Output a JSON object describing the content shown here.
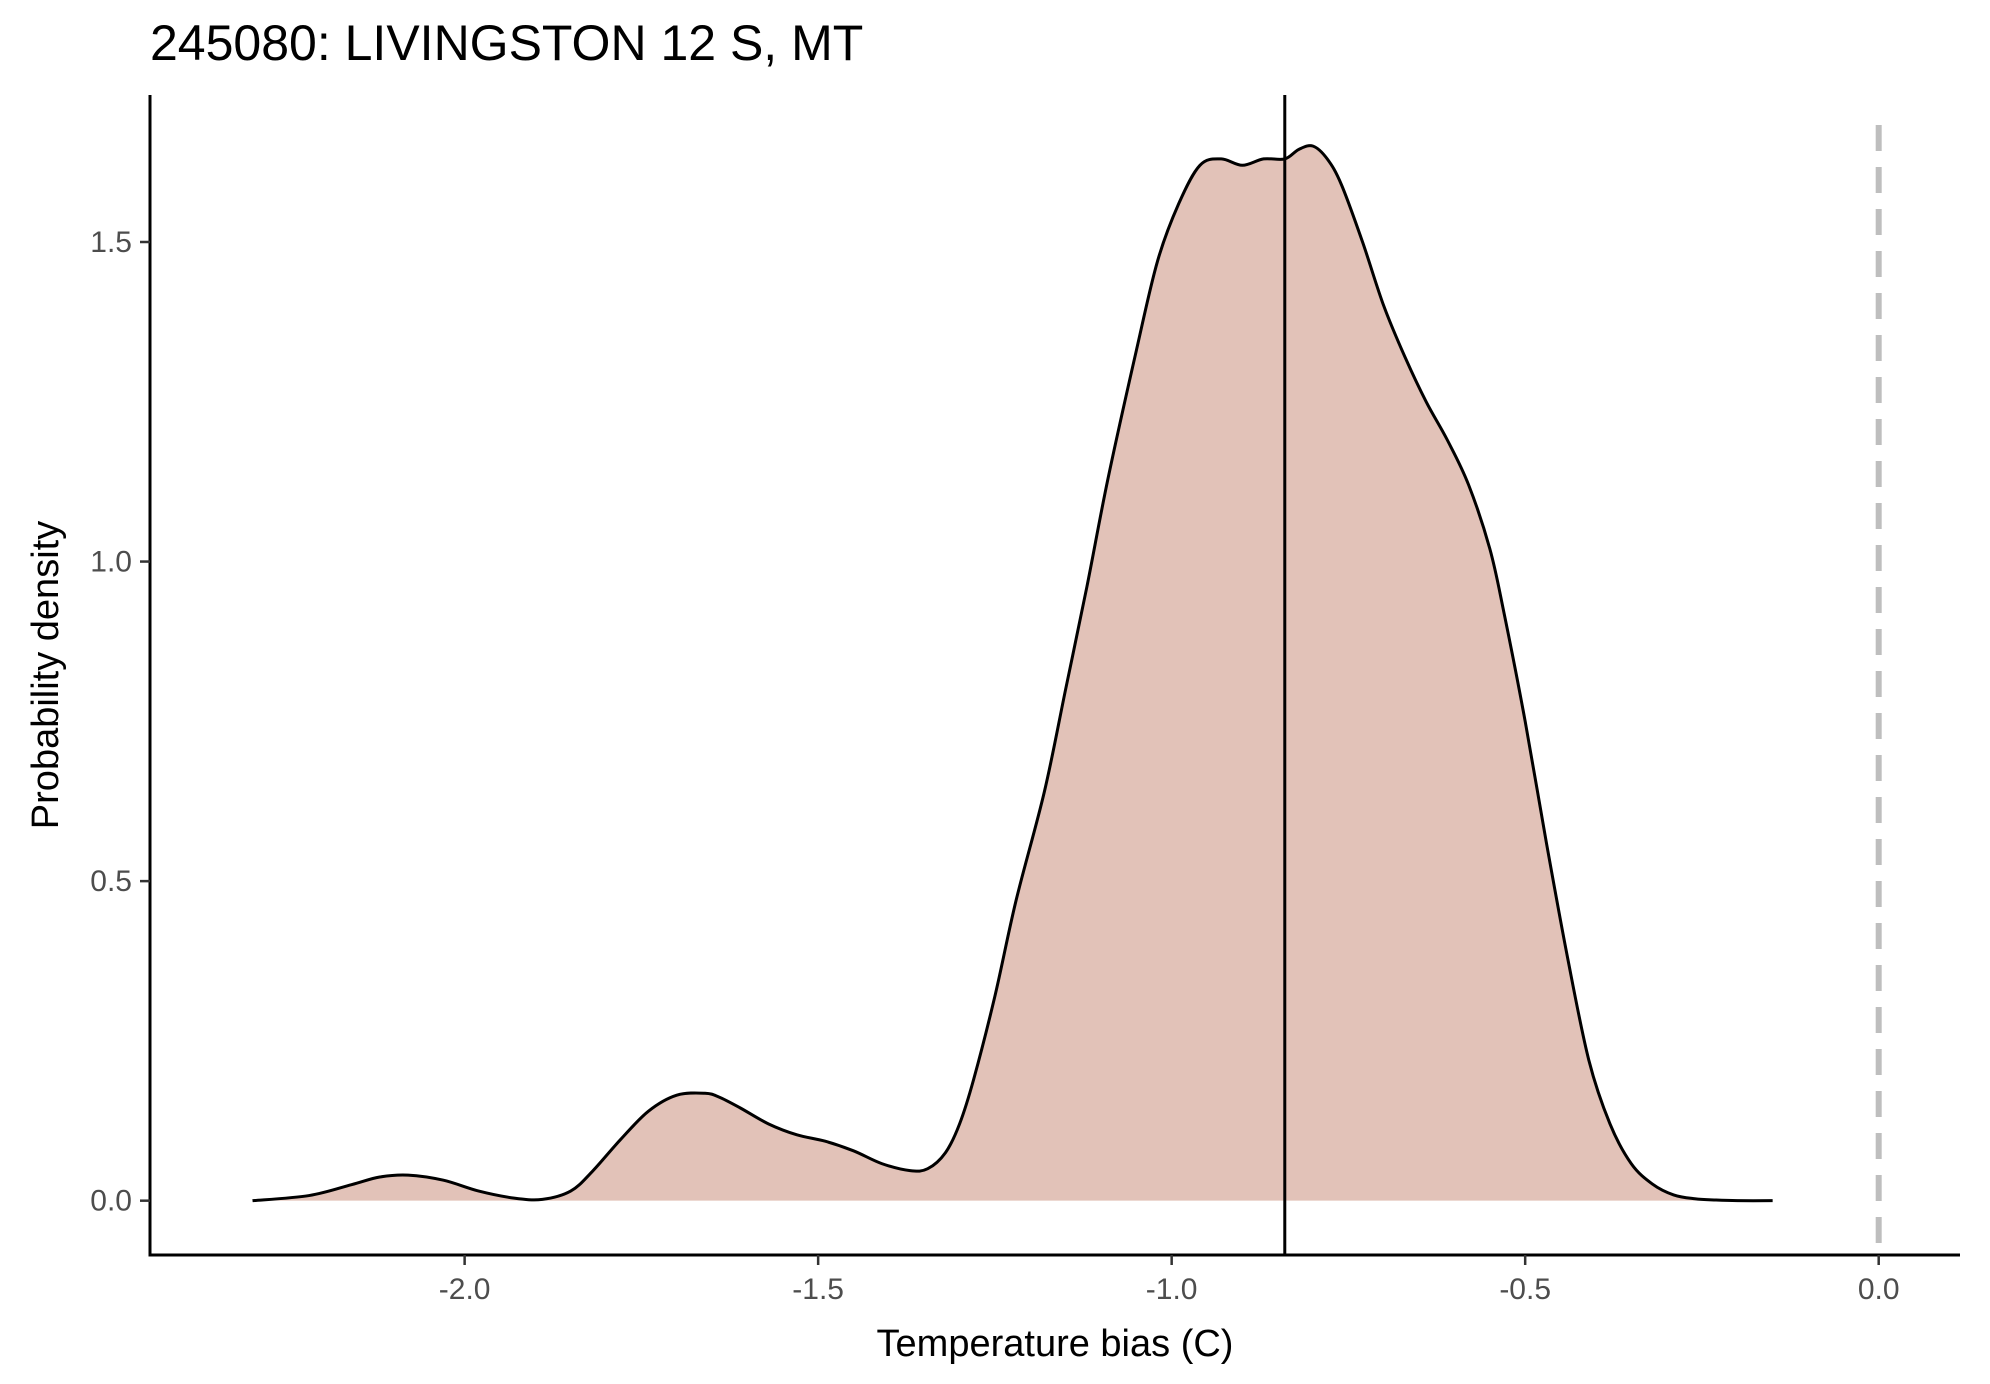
{
  "chart_data": {
    "type": "area",
    "title": "245080: LIVINGSTON 12 S, MT",
    "xlabel": "Temperature bias (C)",
    "ylabel": "Probability density",
    "xlim": [
      -2.445,
      0.115
    ],
    "ylim": [
      -0.085,
      1.73
    ],
    "x_ticks": [
      -2.0,
      -1.5,
      -1.0,
      -0.5,
      0.0
    ],
    "x_tick_labels": [
      "-2.0",
      "-1.5",
      "-1.0",
      "-0.5",
      "0.0"
    ],
    "y_ticks": [
      0.0,
      0.5,
      1.0,
      1.5
    ],
    "y_tick_labels": [
      "0.0",
      "0.5",
      "1.0",
      "1.5"
    ],
    "grid": false,
    "legend": "none",
    "fill_color": "#e2c2b8",
    "line_color": "#000000",
    "mean_line_x": -0.84,
    "reference_line_x": 0.0,
    "reference_line_color": "#bebebe",
    "density": {
      "x": [
        -2.3,
        -2.22,
        -2.16,
        -2.12,
        -2.08,
        -2.03,
        -1.98,
        -1.93,
        -1.89,
        -1.85,
        -1.82,
        -1.78,
        -1.74,
        -1.7,
        -1.66,
        -1.64,
        -1.61,
        -1.57,
        -1.53,
        -1.49,
        -1.45,
        -1.41,
        -1.37,
        -1.345,
        -1.32,
        -1.3,
        -1.28,
        -1.25,
        -1.22,
        -1.18,
        -1.15,
        -1.12,
        -1.09,
        -1.05,
        -1.02,
        -0.99,
        -0.96,
        -0.93,
        -0.9,
        -0.87,
        -0.84,
        -0.82,
        -0.8,
        -0.78,
        -0.76,
        -0.73,
        -0.7,
        -0.67,
        -0.64,
        -0.61,
        -0.58,
        -0.55,
        -0.53,
        -0.5,
        -0.47,
        -0.44,
        -0.41,
        -0.38,
        -0.35,
        -0.32,
        -0.29,
        -0.26,
        -0.23,
        -0.2,
        -0.15
      ],
      "y": [
        0.0,
        0.008,
        0.025,
        0.037,
        0.04,
        0.032,
        0.015,
        0.004,
        0.002,
        0.015,
        0.045,
        0.095,
        0.14,
        0.165,
        0.168,
        0.162,
        0.145,
        0.12,
        0.103,
        0.093,
        0.078,
        0.058,
        0.047,
        0.05,
        0.075,
        0.12,
        0.19,
        0.32,
        0.47,
        0.64,
        0.8,
        0.96,
        1.13,
        1.33,
        1.47,
        1.56,
        1.62,
        1.63,
        1.62,
        1.63,
        1.63,
        1.645,
        1.65,
        1.63,
        1.59,
        1.5,
        1.4,
        1.32,
        1.25,
        1.19,
        1.12,
        1.02,
        0.92,
        0.75,
        0.56,
        0.38,
        0.22,
        0.12,
        0.058,
        0.026,
        0.009,
        0.003,
        0.001,
        0.0,
        0.0
      ]
    }
  }
}
